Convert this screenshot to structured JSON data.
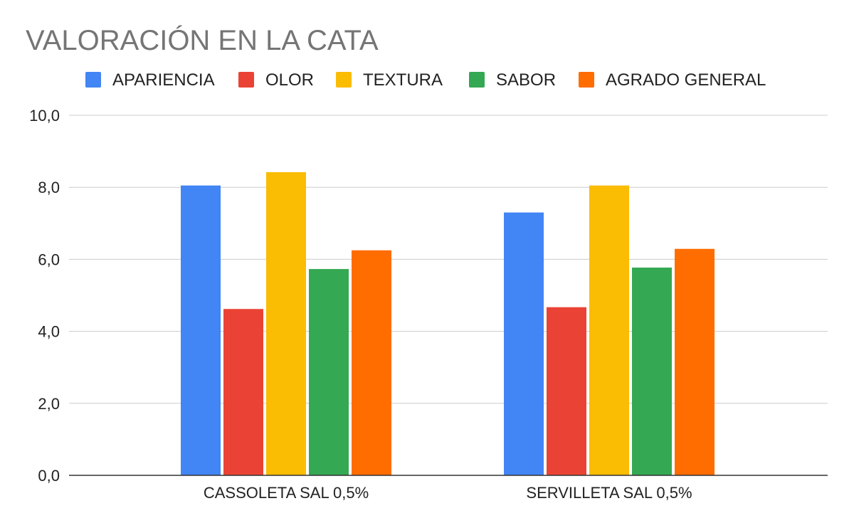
{
  "chart_data": {
    "type": "bar",
    "title": "VALORACIÓN EN LA CATA",
    "xlabel": "",
    "ylabel": "",
    "categories": [
      "CASSOLETA SAL 0,5%",
      "SERVILLETA SAL 0,5%"
    ],
    "series": [
      {
        "name": "APARIENCIA",
        "color": "#4285f4",
        "values": [
          8.05,
          7.3
        ]
      },
      {
        "name": "OLOR",
        "color": "#ea4335",
        "values": [
          4.62,
          4.67
        ]
      },
      {
        "name": "TEXTURA",
        "color": "#fbbc04",
        "values": [
          8.42,
          8.05
        ]
      },
      {
        "name": "SABOR",
        "color": "#34a853",
        "values": [
          5.73,
          5.77
        ]
      },
      {
        "name": "AGRADO GENERAL",
        "color": "#ff6d01",
        "values": [
          6.25,
          6.29
        ]
      }
    ],
    "ylim": [
      0,
      10
    ],
    "yticks": [
      "0,0",
      "2,0",
      "4,0",
      "6,0",
      "8,0",
      "10,0"
    ],
    "grid": true,
    "legend_position": "top"
  }
}
